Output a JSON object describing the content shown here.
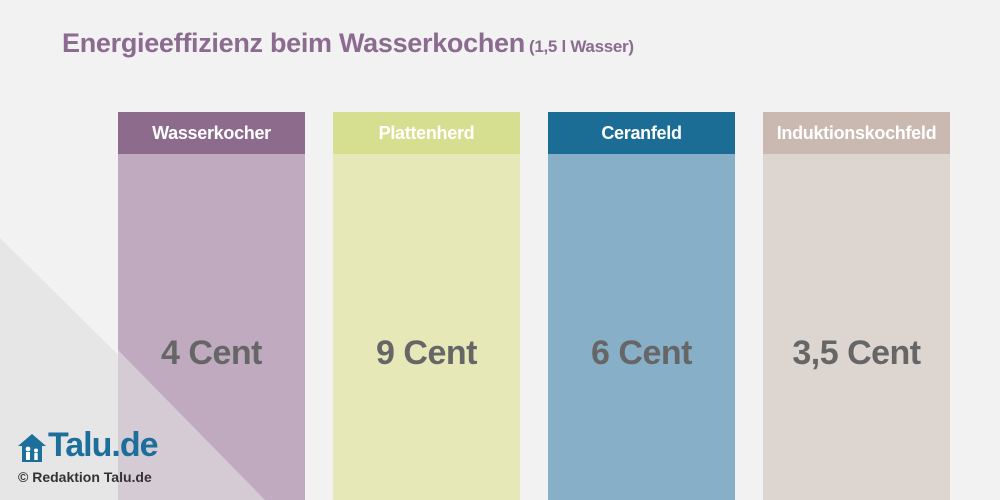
{
  "title": "Energieeffizienz beim Wasserkochen",
  "subtitle": "(1,5 l Wasser)",
  "chart_data": {
    "type": "table",
    "categories": [
      "Wasserkocher",
      "Plattenherd",
      "Ceranfeld",
      "Induktionskochfeld"
    ],
    "values": [
      4,
      9,
      6,
      3.5
    ],
    "value_labels": [
      "4 Cent",
      "9 Cent",
      "6 Cent",
      "3,5 Cent"
    ],
    "unit": "Cent",
    "title": "Energieeffizienz beim Wasserkochen",
    "subtitle": "(1,5 l Wasser)"
  },
  "columns": [
    {
      "label": "Wasserkocher",
      "value": "4 Cent",
      "header_color": "#8c6b8d",
      "body_color": "#bfaabf"
    },
    {
      "label": "Plattenherd",
      "value": "9 Cent",
      "header_color": "#d6df8f",
      "body_color": "#e6e8b8"
    },
    {
      "label": "Ceranfeld",
      "value": "6 Cent",
      "header_color": "#1b6d96",
      "body_color": "#87afc8"
    },
    {
      "label": "Induktionskochfeld",
      "value": "3,5 Cent",
      "header_color": "#c9b9b1",
      "body_color": "#ddd5cf"
    }
  ],
  "logo": {
    "text": "Talu.de",
    "icon": "house-family-icon",
    "color": "#1c6f9a"
  },
  "credit": "© Redaktion Talu.de"
}
